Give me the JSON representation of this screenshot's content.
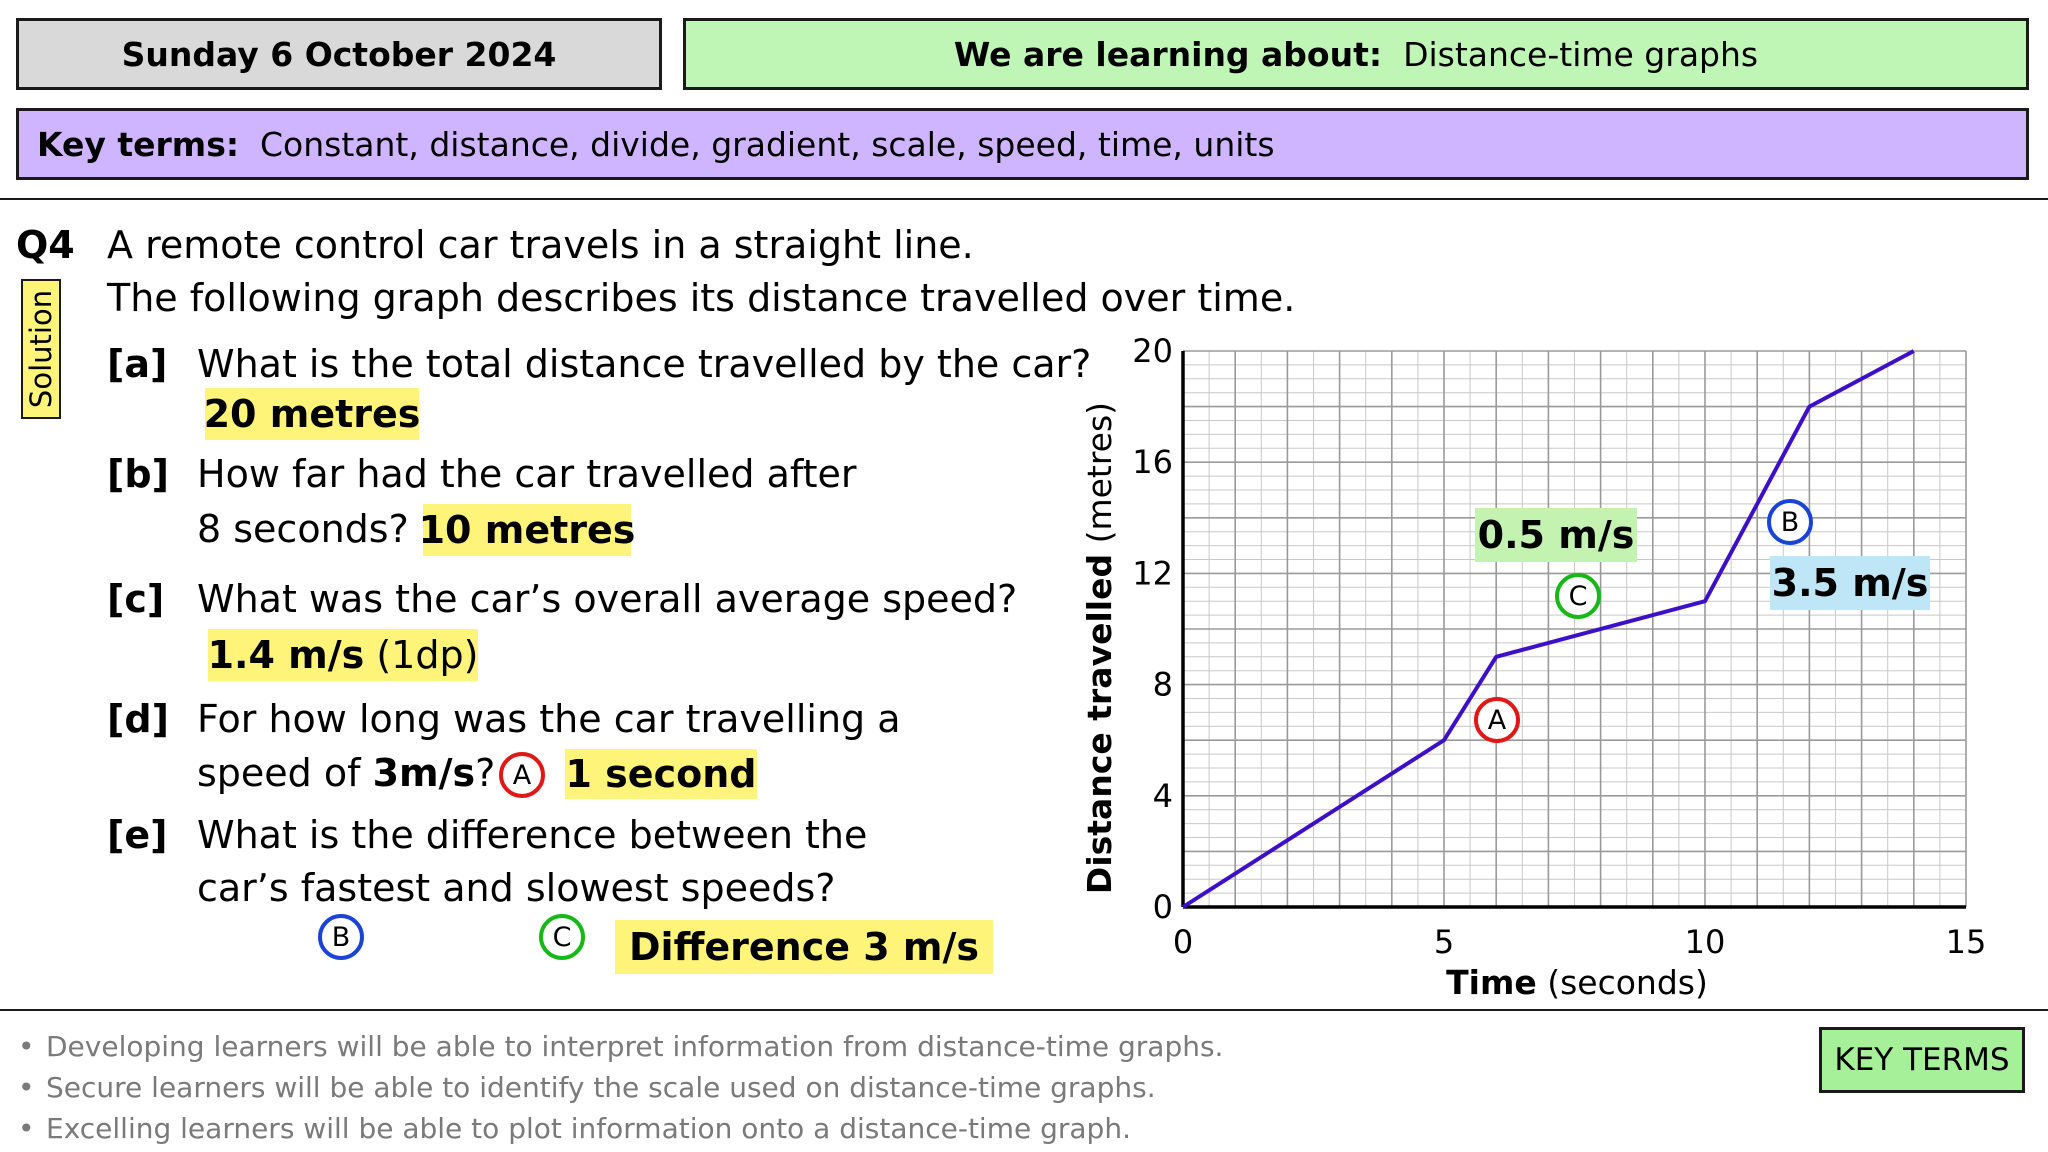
{
  "header": {
    "date": "Sunday 6 October 2024",
    "learning_label": "We are learning about:",
    "learning_topic": "Distance-time graphs",
    "key_terms_label": "Key terms:",
    "key_terms": "Constant, distance, divide, gradient, scale, speed, time, units"
  },
  "question": {
    "number": "Q4",
    "solution_tab": "Solution",
    "intro_line1": "A remote control car travels in a straight line.",
    "intro_line2": "The following graph describes its distance travelled over time.",
    "parts": {
      "a": {
        "label": "[a]",
        "text": "What is the total distance travelled by the car?",
        "answer": "20 metres"
      },
      "b": {
        "label": "[b]",
        "text_line1": "How far had the car travelled after",
        "text_line2": "8 seconds?",
        "answer": "10 metres"
      },
      "c": {
        "label": "[c]",
        "text": "What was the car’s overall average speed?",
        "answer_bold": "1.4 m/s",
        "answer_note": "(1dp)"
      },
      "d": {
        "label": "[d]",
        "text_line1": "For how long was the car travelling a",
        "text_line2_pre": "speed of ",
        "text_line2_bold": "3m/s",
        "text_line2_post": "?",
        "marker": "A",
        "answer": "1 second"
      },
      "e": {
        "label": "[e]",
        "text_line1": "What is the difference between the",
        "text_line2": "car’s fastest and slowest speeds?",
        "marker_b": "B",
        "marker_c": "C",
        "answer": "Difference  3 m/s"
      }
    }
  },
  "graph_labels": {
    "y_label_bold": "Distance travelled",
    "y_label_unit": "(metres)",
    "x_label_bold": "Time",
    "x_label_unit": "(seconds)",
    "speed_c": "0.5 m/s",
    "speed_b": "3.5 m/s",
    "marker_a": "A",
    "marker_b": "B",
    "marker_c": "C"
  },
  "chart_data": {
    "type": "line",
    "x": [
      0,
      5,
      6,
      10,
      12,
      14
    ],
    "y": [
      0,
      6,
      9,
      11,
      18,
      20
    ],
    "xlim": [
      0,
      15
    ],
    "ylim": [
      0,
      20
    ],
    "x_ticks": [
      0,
      5,
      10,
      15
    ],
    "y_ticks": [
      0,
      4,
      8,
      12,
      16,
      20
    ],
    "xlabel": "Time (seconds)",
    "ylabel": "Distance travelled (metres)",
    "grid": true,
    "line_color": "#3d10c8"
  },
  "objectives": [
    "Developing learners will be able to interpret information from distance-time graphs.",
    "Secure learners will be able to identify the scale used on distance-time graphs.",
    "Excelling learners will be able to plot information onto a distance-time graph."
  ],
  "key_terms_button": "KEY TERMS",
  "colors": {
    "date_bg": "#d9d9d9",
    "learning_bg": "#bff5b5",
    "key_terms_bg": "#cfb4ff",
    "highlight_yellow": "#fff47a",
    "highlight_green": "#c4f2b0",
    "highlight_blue": "#bfe6f7"
  }
}
